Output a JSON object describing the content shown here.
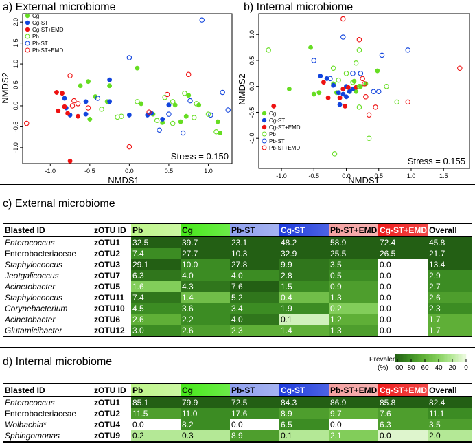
{
  "panel_a": {
    "title": "a) External microbiome",
    "xlabel": "NMDS1",
    "ylabel": "NMDS2",
    "stress": "Stress = 0.150",
    "xticks": [
      "-1.0",
      "-0.5",
      "0.0",
      "0.5",
      "1.0"
    ],
    "yticks": [
      "-1.0",
      "-0.5",
      "0.0",
      "0.5",
      "1.0",
      "1.5",
      "2.0"
    ]
  },
  "panel_b": {
    "title": "b) Internal microbiome",
    "xlabel": "NMDS1",
    "ylabel": "NMDS2",
    "stress": "Stress = 0.155",
    "xticks": [
      "-1.0",
      "-0.5",
      "0.0",
      "0.5",
      "1.0",
      "1.5"
    ],
    "yticks": [
      "-1.0",
      "-0.5",
      "0.0",
      "0.5",
      "1.0"
    ]
  },
  "legend": [
    {
      "label": "Cg",
      "color": "#66dd22",
      "filled": true
    },
    {
      "label": "Cg-ST",
      "color": "#1144dd",
      "filled": true
    },
    {
      "label": "Cg-ST+EMD",
      "color": "#ee1111",
      "filled": true
    },
    {
      "label": "Pb",
      "color": "#66dd22",
      "filled": false
    },
    {
      "label": "Pb-ST",
      "color": "#1144dd",
      "filled": false
    },
    {
      "label": "Pb-ST+EMD",
      "color": "#ee1111",
      "filled": false
    }
  ],
  "panel_c": {
    "title": "c) External microbiome"
  },
  "panel_d": {
    "title": "d) Internal microbiome"
  },
  "table_header": {
    "blasted": "Blasted ID",
    "zotu": "zOTU ID",
    "groups": [
      {
        "label": "Pb",
        "color": "#bef58a"
      },
      {
        "label": "Cg",
        "color": "#47e81a"
      },
      {
        "label": "Pb-ST",
        "color": "#8fa0ee"
      },
      {
        "label": "Cg-ST",
        "color": "#1f3cdc"
      },
      {
        "label": "Pb-ST+EMD",
        "color": "#f4a0a0"
      },
      {
        "label": "Cg-ST+EMD",
        "color": "#ee1c1c"
      }
    ],
    "overall": "Overall"
  },
  "prevalence_legend": {
    "title": "Prevalence",
    "unit": "(%)",
    "labels": [
      "100",
      "80",
      "60",
      "40",
      "20",
      "0"
    ]
  },
  "chart_data": [
    {
      "type": "scatter",
      "title": "a) External microbiome",
      "xlabel": "NMDS1",
      "ylabel": "NMDS2",
      "xlim": [
        -1.35,
        1.3
      ],
      "ylim": [
        -1.38,
        2.2
      ],
      "annotation": "Stress = 0.150",
      "series": [
        {
          "name": "Cg",
          "points": [
            [
              -0.62,
              0.48
            ],
            [
              -0.52,
              0.58
            ],
            [
              -0.25,
              0.48
            ],
            [
              -0.43,
              0.22
            ],
            [
              -0.28,
              0.1
            ],
            [
              -0.5,
              -0.32
            ],
            [
              0.1,
              0.9
            ],
            [
              0.15,
              0.05
            ],
            [
              0.3,
              -0.2
            ],
            [
              0.42,
              -0.4
            ],
            [
              0.58,
              0.02
            ],
            [
              0.65,
              -0.38
            ],
            [
              0.72,
              -0.25
            ],
            [
              0.88,
              0.02
            ],
            [
              1.12,
              -0.38
            ],
            [
              1.15,
              -0.65
            ],
            [
              0.75,
              0.25
            ]
          ]
        },
        {
          "name": "Cg-ST",
          "points": [
            [
              -0.82,
              0.18
            ],
            [
              -0.8,
              -0.05
            ],
            [
              -0.75,
              -0.22
            ],
            [
              -0.55,
              -0.2
            ],
            [
              -0.25,
              0.62
            ],
            [
              -0.25,
              0.1
            ],
            [
              0.0,
              -0.22
            ],
            [
              0.23,
              -0.22
            ],
            [
              0.28,
              -0.18
            ],
            [
              0.42,
              -0.32
            ],
            [
              0.5,
              0.02
            ],
            [
              -0.55,
              0.1
            ]
          ]
        },
        {
          "name": "Cg-ST+EMD",
          "points": [
            [
              -0.92,
              0.32
            ],
            [
              -0.85,
              0.3
            ],
            [
              -0.82,
              -0.02
            ],
            [
              -0.78,
              -0.18
            ],
            [
              -0.9,
              -0.12
            ],
            [
              -0.65,
              -0.25
            ],
            [
              -0.75,
              -1.32
            ]
          ]
        },
        {
          "name": "Pb",
          "points": [
            [
              -0.35,
              -0.08
            ],
            [
              -0.15,
              -0.27
            ],
            [
              0.35,
              -0.35
            ],
            [
              0.55,
              -0.42
            ],
            [
              0.7,
              0.3
            ],
            [
              0.82,
              -0.28
            ],
            [
              1.1,
              -0.62
            ],
            [
              1.0,
              -0.2
            ],
            [
              0.85,
              0.05
            ],
            [
              0.55,
              0.1
            ],
            [
              0.1,
              0.1
            ],
            [
              0.45,
              0.2
            ],
            [
              -0.1,
              -0.25
            ]
          ]
        },
        {
          "name": "Pb-ST",
          "points": [
            [
              -0.4,
              0.18
            ],
            [
              0.0,
              1.15
            ],
            [
              0.38,
              -0.58
            ],
            [
              0.68,
              -0.65
            ],
            [
              0.77,
              0.12
            ],
            [
              0.92,
              2.05
            ],
            [
              1.03,
              -0.22
            ],
            [
              1.18,
              0.32
            ],
            [
              1.25,
              -0.1
            ],
            [
              0.5,
              -0.2
            ]
          ]
        },
        {
          "name": "Pb-ST+EMD",
          "points": [
            [
              -1.3,
              -0.42
            ],
            [
              -0.75,
              0.72
            ],
            [
              -0.7,
              0.12
            ],
            [
              -0.65,
              0.05
            ],
            [
              -0.52,
              -0.05
            ],
            [
              0.0,
              -0.98
            ],
            [
              0.25,
              -0.15
            ],
            [
              0.48,
              0.27
            ],
            [
              0.75,
              0.75
            ],
            [
              -0.72,
              0.0
            ]
          ]
        }
      ]
    },
    {
      "type": "scatter",
      "title": "b) Internal microbiome",
      "xlabel": "NMDS1",
      "ylabel": "NMDS2",
      "xlim": [
        -1.35,
        1.9
      ],
      "ylim": [
        -1.58,
        1.4
      ],
      "annotation": "Stress = 0.155",
      "series": [
        {
          "name": "Cg",
          "points": [
            [
              -0.55,
              0.75
            ],
            [
              -0.88,
              -0.05
            ],
            [
              -0.5,
              -0.15
            ],
            [
              -0.42,
              -0.12
            ],
            [
              -0.15,
              -0.12
            ],
            [
              -0.2,
              0.05
            ],
            [
              -0.05,
              -0.05
            ],
            [
              0.05,
              -0.1
            ],
            [
              0.15,
              -0.1
            ],
            [
              0.22,
              0.0
            ],
            [
              0.3,
              0.05
            ],
            [
              0.48,
              0.3
            ],
            [
              0.12,
              0.1
            ]
          ]
        },
        {
          "name": "Cg-ST",
          "points": [
            [
              -0.4,
              0.2
            ],
            [
              -0.3,
              0.15
            ],
            [
              -0.2,
              0.02
            ],
            [
              -0.12,
              -0.12
            ],
            [
              -0.1,
              -0.35
            ],
            [
              0.0,
              -0.2
            ],
            [
              0.05,
              -0.1
            ],
            [
              0.1,
              -0.05
            ],
            [
              0.0,
              0.0
            ],
            [
              -0.05,
              -0.15
            ]
          ]
        },
        {
          "name": "Cg-ST+EMD",
          "points": [
            [
              -1.12,
              -0.38
            ],
            [
              -0.35,
              0.08
            ],
            [
              -0.28,
              -0.22
            ],
            [
              -0.1,
              -0.22
            ],
            [
              -0.05,
              -0.05
            ],
            [
              0.03,
              -0.02
            ],
            [
              0.15,
              -0.02
            ],
            [
              -0.02,
              -0.38
            ]
          ]
        },
        {
          "name": "Pb",
          "points": [
            [
              -1.2,
              0.7
            ],
            [
              -0.2,
              0.35
            ],
            [
              0.0,
              0.25
            ],
            [
              -0.12,
              0.12
            ],
            [
              0.1,
              0.08
            ],
            [
              0.15,
              0.45
            ],
            [
              0.2,
              0.0
            ],
            [
              0.2,
              -0.4
            ],
            [
              0.35,
              -1.0
            ],
            [
              0.62,
              0.0
            ],
            [
              0.78,
              -0.3
            ],
            [
              -0.18,
              -1.3
            ],
            [
              0.2,
              0.7
            ]
          ]
        },
        {
          "name": "Pb-ST",
          "points": [
            [
              -0.5,
              0.5
            ],
            [
              -0.05,
              0.95
            ],
            [
              -0.25,
              0.15
            ],
            [
              0.1,
              0.25
            ],
            [
              0.22,
              0.25
            ],
            [
              0.42,
              -0.1
            ],
            [
              0.55,
              0.6
            ],
            [
              0.95,
              0.7
            ],
            [
              0.5,
              -0.1
            ]
          ]
        },
        {
          "name": "Pb-ST+EMD",
          "points": [
            [
              -0.05,
              1.3
            ],
            [
              0.2,
              0.9
            ],
            [
              0.25,
              0.15
            ],
            [
              0.28,
              0.05
            ],
            [
              0.3,
              -0.2
            ],
            [
              0.35,
              -0.55
            ],
            [
              0.95,
              -0.3
            ],
            [
              1.75,
              0.35
            ],
            [
              0.45,
              -0.4
            ]
          ]
        }
      ]
    },
    {
      "type": "table",
      "title": "c) External microbiome",
      "columns": [
        "Blasted ID",
        "zOTU ID",
        "Pb",
        "Cg",
        "Pb-ST",
        "Cg-ST",
        "Pb-ST+EMD",
        "Cg-ST+EMD",
        "Overall"
      ],
      "rows": [
        {
          "id": "Enterococcus",
          "italic": true,
          "zotu": "zOTU1",
          "values": [
            "32.5",
            "39.7",
            "23.1",
            "48.2",
            "58.9",
            "72.4",
            "45.8"
          ]
        },
        {
          "id": "Enterobacteriaceae",
          "italic": false,
          "zotu": "zOTU2",
          "values": [
            "7.4",
            "27.7",
            "10.3",
            "32.9",
            "25.5",
            "26.5",
            "21.7"
          ]
        },
        {
          "id": "Staphylococcus",
          "italic": true,
          "zotu": "zOTU3",
          "values": [
            "29.1",
            "10.0",
            "27.8",
            "9.9",
            "3.5",
            "0.0",
            "13.4"
          ]
        },
        {
          "id": "Jeotgalicoccus",
          "italic": true,
          "zotu": "zOTU7",
          "values": [
            "6.3",
            "4.0",
            "4.0",
            "2.8",
            "0.5",
            "0.0",
            "2.9"
          ]
        },
        {
          "id": "Acinetobacter",
          "italic": true,
          "zotu": "zOTU5",
          "values": [
            "1.6",
            "4.3",
            "7.6",
            "1.5",
            "0.9",
            "0.0",
            "2.7"
          ]
        },
        {
          "id": "Staphylococcus",
          "italic": true,
          "zotu": "zOTU11",
          "values": [
            "7.4",
            "1.4",
            "5.2",
            "0.4",
            "1.3",
            "0.0",
            "2.6"
          ]
        },
        {
          "id": "Corynebacterium",
          "italic": true,
          "zotu": "zOTU10",
          "values": [
            "4.5",
            "3.6",
            "3.4",
            "1.9",
            "0.2",
            "0.0",
            "2.3"
          ]
        },
        {
          "id": "Acinetobacter",
          "italic": true,
          "zotu": "zOTU6",
          "values": [
            "2.6",
            "2.2",
            "4.0",
            "0.1",
            "1.2",
            "0.0",
            "1.7"
          ]
        },
        {
          "id": "Glutamicibacter",
          "italic": true,
          "zotu": "zOTU12",
          "values": [
            "3.0",
            "2.6",
            "2.3",
            "1.4",
            "1.3",
            "0.0",
            "1.7"
          ]
        }
      ],
      "cell_prevalence": [
        [
          100,
          100,
          100,
          100,
          100,
          100,
          100
        ],
        [
          80,
          100,
          100,
          100,
          100,
          100,
          100
        ],
        [
          100,
          80,
          100,
          90,
          85,
          0,
          100
        ],
        [
          90,
          80,
          80,
          90,
          80,
          0,
          80
        ],
        [
          40,
          90,
          100,
          80,
          70,
          0,
          80
        ],
        [
          90,
          50,
          90,
          50,
          70,
          0,
          70
        ],
        [
          80,
          80,
          80,
          80,
          40,
          0,
          80
        ],
        [
          60,
          80,
          90,
          10,
          60,
          0,
          60
        ],
        [
          80,
          70,
          60,
          60,
          70,
          0,
          60
        ]
      ]
    },
    {
      "type": "table",
      "title": "d) Internal microbiome",
      "columns": [
        "Blasted ID",
        "zOTU ID",
        "Pb",
        "Cg",
        "Pb-ST",
        "Cg-ST",
        "Pb-ST+EMD",
        "Cg-ST+EMD",
        "Overall"
      ],
      "rows": [
        {
          "id": "Enterococcus",
          "italic": true,
          "zotu": "zOTU1",
          "values": [
            "85.1",
            "79.9",
            "72.5",
            "84.3",
            "86.9",
            "85.8",
            "82.4"
          ]
        },
        {
          "id": "Enterobacteriaceae",
          "italic": false,
          "zotu": "zOTU2",
          "values": [
            "11.5",
            "11.0",
            "17.6",
            "8.9",
            "9.7",
            "7.6",
            "11.1"
          ]
        },
        {
          "id": "Wolbachia",
          "italic": true,
          "mark": "*",
          "zotu": "zOTU4",
          "values": [
            "0.0",
            "8.2",
            "0.0",
            "6.5",
            "0.0",
            "6.3",
            "3.5"
          ]
        },
        {
          "id": "Sphingomonas",
          "italic": true,
          "zotu": "zOTU9",
          "values": [
            "0.2",
            "0.3",
            "8.9",
            "0.1",
            "2.1",
            "0.0",
            "2.0"
          ]
        }
      ],
      "cell_prevalence": [
        [
          100,
          100,
          100,
          100,
          100,
          100,
          100
        ],
        [
          70,
          80,
          80,
          70,
          60,
          70,
          80
        ],
        [
          0,
          80,
          0,
          80,
          0,
          70,
          70
        ],
        [
          20,
          20,
          70,
          20,
          40,
          5,
          20
        ]
      ]
    }
  ]
}
